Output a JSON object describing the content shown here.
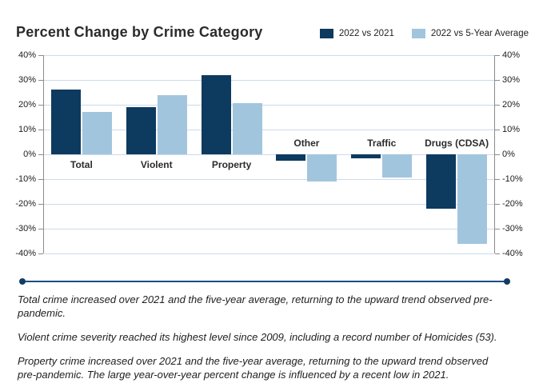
{
  "title": "Percent Change by Crime Category",
  "legend": [
    {
      "label": "2022 vs 2021",
      "color": "#0d3a5f",
      "icon": "legend-swatch-dark-navy"
    },
    {
      "label": "2022 vs 5-Year Average",
      "color": "#a2c5de",
      "icon": "legend-swatch-light-blue"
    }
  ],
  "chart_data": {
    "type": "bar",
    "title": "Percent Change by Crime Category",
    "categories": [
      "Total",
      "Violent",
      "Property",
      "Other",
      "Traffic",
      "Drugs (CDSA)"
    ],
    "series": [
      {
        "name": "2022 vs 2021",
        "color": "#0d3a5f",
        "values": [
          26,
          19,
          32,
          -2.5,
          -1.5,
          -22
        ]
      },
      {
        "name": "2022 vs 5-Year Average",
        "color": "#a2c5de",
        "values": [
          17,
          24,
          20.5,
          -11,
          -9.5,
          -36
        ]
      }
    ],
    "ylim": [
      -40,
      40
    ],
    "ytick_step": 10,
    "ytick_labels": [
      "40%",
      "30%",
      "20%",
      "10%",
      "0%",
      "-10%",
      "-20%",
      "-30%",
      "-40%"
    ],
    "y_axis_sides": "both",
    "grid": true,
    "gridline_color": "#ccdaeb",
    "axis_color": "#8c8c8c",
    "legend_position": "top-right",
    "xlabel": "",
    "ylabel": ""
  },
  "notes": [
    "Total crime increased over 2021 and the five-year average, returning to the upward trend observed pre-pandemic.",
    "Violent crime severity reached its highest level since 2009, including a record number of Homicides (53).",
    "Property crime increased over 2021 and the five-year average, returning to the upward trend observed pre-pandemic. The large year-over-year percent change is influenced by a recent low in 2021."
  ]
}
